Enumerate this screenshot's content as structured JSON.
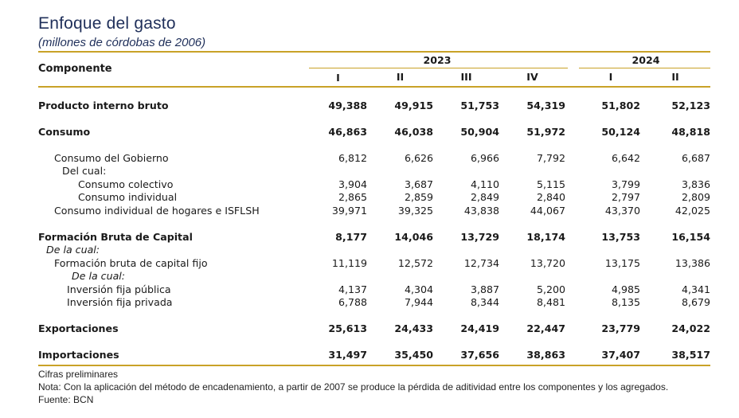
{
  "title": "Enfoque del gasto",
  "subtitle": "(millones de córdobas de 2006)",
  "header": {
    "component_label": "Componente",
    "years": [
      "2023",
      "2024"
    ],
    "quarters": [
      "I",
      "II",
      "III",
      "IV",
      "I",
      "II"
    ]
  },
  "rows": [
    {
      "label": "Producto interno bruto",
      "values": [
        "49,388",
        "49,915",
        "51,753",
        "54,319",
        "51,802",
        "52,123"
      ]
    },
    {
      "label": "Consumo",
      "values": [
        "46,863",
        "46,038",
        "50,904",
        "51,972",
        "50,124",
        "48,818"
      ]
    },
    {
      "label": "Consumo del Gobierno",
      "values": [
        "6,812",
        "6,626",
        "6,966",
        "7,792",
        "6,642",
        "6,687"
      ]
    },
    {
      "label": "Del cual:"
    },
    {
      "label": "Consumo colectivo",
      "values": [
        "3,904",
        "3,687",
        "4,110",
        "5,115",
        "3,799",
        "3,836"
      ]
    },
    {
      "label": "Consumo individual",
      "values": [
        "2,865",
        "2,859",
        "2,849",
        "2,840",
        "2,797",
        "2,809"
      ]
    },
    {
      "label": "Consumo individual de hogares e ISFLSH",
      "values": [
        "39,971",
        "39,325",
        "43,838",
        "44,067",
        "43,370",
        "42,025"
      ]
    },
    {
      "label": "Formación Bruta de Capital",
      "values": [
        "8,177",
        "14,046",
        "13,729",
        "18,174",
        "13,753",
        "16,154"
      ]
    },
    {
      "label": "De la cual:"
    },
    {
      "label": "Formación bruta de capital fijo",
      "values": [
        "11,119",
        "12,572",
        "12,734",
        "13,720",
        "13,175",
        "13,386"
      ]
    },
    {
      "label": "De la cual:"
    },
    {
      "label": "Inversión fija pública",
      "values": [
        "4,137",
        "4,304",
        "3,887",
        "5,200",
        "4,985",
        "4,341"
      ]
    },
    {
      "label": "Inversión fija privada",
      "values": [
        "6,788",
        "7,944",
        "8,344",
        "8,481",
        "8,135",
        "8,679"
      ]
    },
    {
      "label": "Exportaciones",
      "values": [
        "25,613",
        "24,433",
        "24,419",
        "22,447",
        "23,779",
        "24,022"
      ]
    },
    {
      "label": "Importaciones",
      "values": [
        "31,497",
        "35,450",
        "37,656",
        "38,863",
        "37,407",
        "38,517"
      ]
    }
  ],
  "notes": {
    "preliminary": "Cifras preliminares",
    "note": "Nota: Con la aplicación del método de encadenamiento, a partir de 2007 se produce la pérdida de aditividad entre los componentes y los agregados.",
    "source": "Fuente: BCN"
  },
  "colors": {
    "accent": "#c9a227",
    "title": "#1f2f5a"
  }
}
